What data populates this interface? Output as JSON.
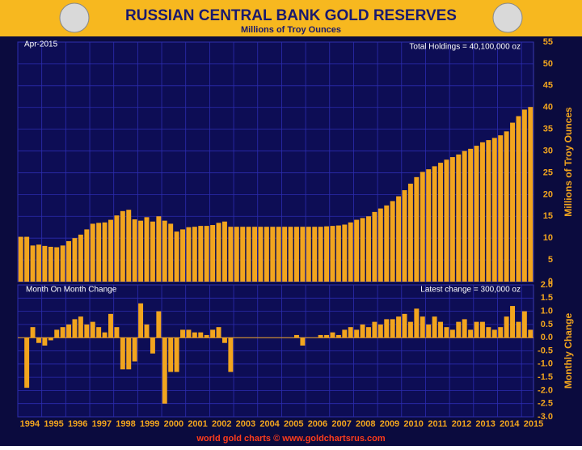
{
  "header": {
    "title": "RUSSIAN CENTRAL BANK GOLD RESERVES",
    "subtitle": "Millions of Troy Ounces"
  },
  "footer": "world gold charts © www.goldchartsrus.com",
  "chart_data": [
    {
      "type": "bar",
      "date_label": "Apr-2015",
      "annotation": "Total Holdings = 40,100,000 oz",
      "ylabel": "Millions of Troy Ounces",
      "color": "#f2a51e",
      "grid": true,
      "x": [
        1994,
        1994.25,
        1994.5,
        1994.75,
        1995,
        1995.25,
        1995.5,
        1995.75,
        1996,
        1996.25,
        1996.5,
        1996.75,
        1997,
        1997.25,
        1997.5,
        1997.75,
        1998,
        1998.25,
        1998.5,
        1998.75,
        1999,
        1999.25,
        1999.5,
        1999.75,
        2000,
        2000.25,
        2000.5,
        2000.75,
        2001,
        2001.25,
        2001.5,
        2001.75,
        2002,
        2002.25,
        2002.5,
        2002.75,
        2003,
        2003.25,
        2003.5,
        2003.75,
        2004,
        2004.25,
        2004.5,
        2004.75,
        2005,
        2005.25,
        2005.5,
        2005.75,
        2006,
        2006.25,
        2006.5,
        2006.75,
        2007,
        2007.25,
        2007.5,
        2007.75,
        2008,
        2008.25,
        2008.5,
        2008.75,
        2009,
        2009.25,
        2009.5,
        2009.75,
        2010,
        2010.25,
        2010.5,
        2010.75,
        2011,
        2011.25,
        2011.5,
        2011.75,
        2012,
        2012.25,
        2012.5,
        2012.75,
        2013,
        2013.25,
        2013.5,
        2013.75,
        2014,
        2014.25,
        2014.5,
        2014.75,
        2015,
        2015.25
      ],
      "values": [
        10.3,
        10.3,
        8.3,
        8.5,
        8.2,
        8.0,
        7.9,
        8.3,
        9.3,
        10.0,
        10.8,
        12.0,
        13.3,
        13.5,
        13.6,
        14.2,
        15.2,
        16.2,
        16.5,
        14.3,
        14.0,
        14.8,
        13.8,
        15.0,
        14.0,
        13.3,
        11.5,
        12.0,
        12.5,
        12.6,
        12.8,
        12.8,
        13.0,
        13.5,
        13.8,
        12.6,
        12.6,
        12.6,
        12.6,
        12.6,
        12.6,
        12.6,
        12.6,
        12.6,
        12.6,
        12.6,
        12.6,
        12.6,
        12.6,
        12.6,
        12.6,
        12.7,
        12.8,
        12.9,
        13.1,
        13.6,
        14.2,
        14.6,
        15.0,
        16.0,
        16.8,
        17.5,
        18.5,
        19.6,
        21.0,
        22.5,
        24.0,
        25.2,
        25.8,
        26.5,
        27.3,
        28.0,
        28.6,
        29.2,
        30.0,
        30.5,
        31.2,
        32.0,
        32.5,
        33.0,
        33.6,
        34.5,
        36.5,
        38.0,
        39.5,
        40.1
      ],
      "xlim": [
        1994,
        2015.5
      ],
      "ylim": [
        0,
        55
      ],
      "yticks": [
        0,
        5,
        10,
        15,
        20,
        25,
        30,
        35,
        40,
        45,
        50,
        55
      ]
    },
    {
      "type": "bar",
      "annotation": "Month On Month Change",
      "note": "Latest change = 300,000 oz",
      "ylabel": "Monthly Change",
      "color": "#f2a51e",
      "grid": true,
      "x": [
        1994,
        1994.25,
        1994.5,
        1994.75,
        1995,
        1995.25,
        1995.5,
        1995.75,
        1996,
        1996.25,
        1996.5,
        1996.75,
        1997,
        1997.25,
        1997.5,
        1997.75,
        1998,
        1998.25,
        1998.5,
        1998.75,
        1999,
        1999.25,
        1999.5,
        1999.75,
        2000,
        2000.25,
        2000.5,
        2000.75,
        2001,
        2001.25,
        2001.5,
        2001.75,
        2002,
        2002.25,
        2002.5,
        2002.75,
        2003,
        2003.25,
        2003.5,
        2003.75,
        2004,
        2004.25,
        2004.5,
        2004.75,
        2005,
        2005.25,
        2005.5,
        2005.75,
        2006,
        2006.25,
        2006.5,
        2006.75,
        2007,
        2007.25,
        2007.5,
        2007.75,
        2008,
        2008.25,
        2008.5,
        2008.75,
        2009,
        2009.25,
        2009.5,
        2009.75,
        2010,
        2010.25,
        2010.5,
        2010.75,
        2011,
        2011.25,
        2011.5,
        2011.75,
        2012,
        2012.25,
        2012.5,
        2012.75,
        2013,
        2013.25,
        2013.5,
        2013.75,
        2014,
        2014.25,
        2014.5,
        2014.75,
        2015,
        2015.25
      ],
      "values": [
        0.0,
        -1.9,
        0.4,
        -0.2,
        -0.3,
        -0.1,
        0.3,
        0.4,
        0.5,
        0.7,
        0.8,
        0.5,
        0.6,
        0.4,
        0.2,
        0.9,
        0.4,
        -1.2,
        -1.2,
        -0.9,
        1.3,
        0.5,
        -0.6,
        1.0,
        -2.5,
        -1.3,
        -1.3,
        0.3,
        0.3,
        0.2,
        0.2,
        0.1,
        0.3,
        0.4,
        -0.2,
        -1.3,
        0.0,
        0.0,
        0.0,
        0.0,
        0.0,
        0.0,
        0.0,
        0.0,
        0.0,
        0.0,
        0.1,
        -0.3,
        0.0,
        0.0,
        0.1,
        0.1,
        0.2,
        0.1,
        0.3,
        0.4,
        0.3,
        0.5,
        0.4,
        0.6,
        0.5,
        0.7,
        0.7,
        0.8,
        0.9,
        0.6,
        1.1,
        0.8,
        0.5,
        0.8,
        0.6,
        0.4,
        0.3,
        0.6,
        0.7,
        0.3,
        0.6,
        0.6,
        0.4,
        0.3,
        0.4,
        0.8,
        1.2,
        0.6,
        1.0,
        0.3
      ],
      "xlim": [
        1994,
        2015.5
      ],
      "ylim": [
        -3,
        2
      ],
      "yticks": [
        {
          "value": -3,
          "label": "-3.0"
        },
        -2.5,
        {
          "value": -2,
          "label": "-2.0"
        },
        -1.5,
        {
          "value": -1,
          "label": "-1.0"
        },
        -0.5,
        {
          "value": 0,
          "label": "0.0"
        },
        0.5,
        {
          "value": 1,
          "label": "1.0"
        },
        1.5,
        {
          "value": 2,
          "label": "2.0"
        }
      ],
      "xticks": [
        1994,
        1995,
        1996,
        1997,
        1998,
        1999,
        2000,
        2001,
        2002,
        2003,
        2004,
        2005,
        2006,
        2007,
        2008,
        2009,
        2010,
        2011,
        2012,
        2013,
        2014,
        2015
      ]
    }
  ]
}
